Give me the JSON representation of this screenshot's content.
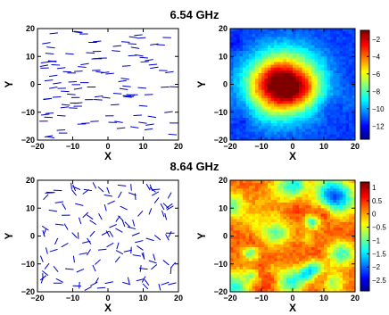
{
  "chart_data": [
    {
      "type": "scatter",
      "panel": "dipole-orientation-map",
      "title": "6.54 GHz",
      "xlabel": "X",
      "ylabel": "Y",
      "xlim": [
        -20,
        20
      ],
      "ylim": [
        -20,
        20
      ],
      "xticks": [
        "−20",
        "−10",
        "0",
        "10",
        "20"
      ],
      "yticks": [
        "20",
        "10",
        "0",
        "−10",
        "−20"
      ],
      "grid": false,
      "marker": "short line segments (dipoles)",
      "color": "#0000cc",
      "orientation_note": "predominantly horizontal",
      "seed": 11,
      "count": 120,
      "angle_spread_deg": 12
    },
    {
      "type": "heatmap",
      "panel": "field-intensity-map",
      "xlabel": "X",
      "ylabel": "Y",
      "xlim": [
        -20,
        20
      ],
      "ylim": [
        -20,
        20
      ],
      "xticks": [
        "−20",
        "−10",
        "0",
        "10",
        "20"
      ],
      "yticks": [
        "20",
        "10",
        "0",
        "−10",
        "−20"
      ],
      "colormap": "jet",
      "colorbar_range": [
        -13.5,
        -1
      ],
      "colorbar_ticks": [
        "−2",
        "−4",
        "−6",
        "−8",
        "−10",
        "−12"
      ],
      "colorbar_values": [
        -2,
        -4,
        -6,
        -8,
        -10,
        -12
      ],
      "pattern": "single central hot spot",
      "center": [
        -3,
        0
      ],
      "seed": 5
    },
    {
      "type": "scatter",
      "panel": "dipole-orientation-map",
      "title": "8.64 GHz",
      "xlabel": "X",
      "ylabel": "Y",
      "xlim": [
        -20,
        20
      ],
      "ylim": [
        -20,
        20
      ],
      "xticks": [
        "−20",
        "−10",
        "0",
        "10",
        "20"
      ],
      "yticks": [
        "20",
        "10",
        "0",
        "−10",
        "−20"
      ],
      "grid": false,
      "marker": "short line segments (dipoles)",
      "color": "#0000cc",
      "orientation_note": "random orientations",
      "seed": 29,
      "count": 130,
      "angle_spread_deg": 180
    },
    {
      "type": "heatmap",
      "panel": "field-intensity-map",
      "xlabel": "X",
      "ylabel": "Y",
      "xlim": [
        -20,
        20
      ],
      "ylim": [
        -20,
        20
      ],
      "xticks": [
        "−20",
        "−10",
        "0",
        "10",
        "20"
      ],
      "yticks": [
        "20",
        "10",
        "0",
        "−10",
        "−20"
      ],
      "colormap": "jet",
      "colorbar_range": [
        -2.9,
        1.2
      ],
      "colorbar_ticks": [
        "1",
        "0.5",
        "0",
        "−0.5",
        "−1",
        "−1.5",
        "−2",
        "−2.5"
      ],
      "colorbar_values": [
        1,
        0.5,
        0,
        -0.5,
        -1,
        -1.5,
        -2,
        -2.5
      ],
      "pattern": "speckled, mostly high values",
      "seed": 17
    }
  ]
}
